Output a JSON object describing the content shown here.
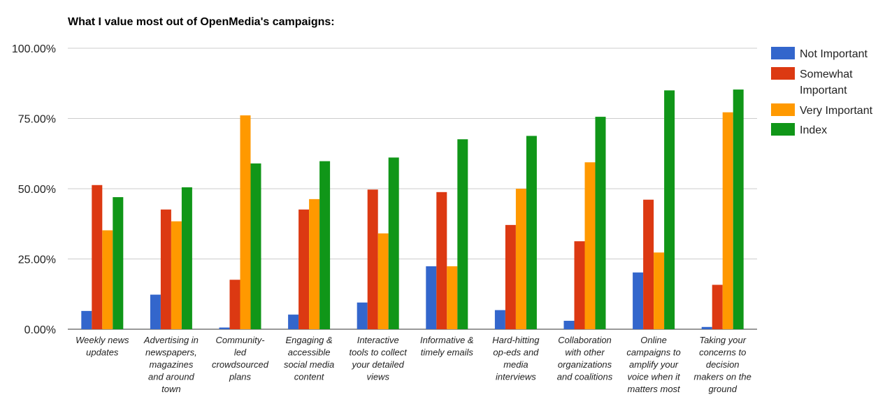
{
  "chart_data": {
    "type": "bar",
    "title": "What I value most out of OpenMedia's campaigns:",
    "ylim": [
      0,
      100
    ],
    "yticks": [
      0,
      25,
      50,
      75,
      100
    ],
    "ytick_labels": [
      "0.00%",
      "25.00%",
      "50.00%",
      "75.00%",
      "100.00%"
    ],
    "grid": true,
    "legend_position": "right",
    "categories": [
      [
        "Weekly news",
        "updates"
      ],
      [
        "Advertising in",
        "newspapers,",
        "magazines",
        "and around",
        "town"
      ],
      [
        "Community-",
        "led",
        "crowdsourced",
        "plans"
      ],
      [
        "Engaging &",
        "accessible",
        "social media",
        "content"
      ],
      [
        "Interactive",
        "tools to collect",
        "your detailed",
        "views"
      ],
      [
        "Informative &",
        "timely emails"
      ],
      [
        "Hard-hitting",
        "op-eds and",
        "media",
        "interviews"
      ],
      [
        "Collaboration",
        "with other",
        "organizations",
        "and coalitions"
      ],
      [
        "Online",
        "campaigns to",
        "amplify your",
        "voice when it",
        "matters most"
      ],
      [
        "Taking your",
        "concerns to",
        "decision",
        "makers on the",
        "ground"
      ]
    ],
    "series": [
      {
        "name": "Not Important",
        "color": "#3366cc",
        "values": [
          6.5,
          12.3,
          0.6,
          5.2,
          9.5,
          22.4,
          6.8,
          3.0,
          20.2,
          0.8
        ]
      },
      {
        "name": "Somewhat Important",
        "color": "#dc3912",
        "values": [
          51.3,
          42.6,
          17.6,
          42.6,
          49.7,
          48.8,
          37.1,
          31.3,
          46.1,
          15.8
        ]
      },
      {
        "name": "Very Important",
        "color": "#ff9900",
        "values": [
          35.2,
          38.4,
          76.1,
          46.3,
          34.1,
          22.4,
          50.0,
          59.4,
          27.3,
          77.2
        ]
      },
      {
        "name": "Index",
        "color": "#109618",
        "values": [
          47.0,
          50.5,
          59.0,
          59.8,
          61.1,
          67.6,
          68.8,
          75.6,
          85.0,
          85.3
        ]
      }
    ]
  }
}
